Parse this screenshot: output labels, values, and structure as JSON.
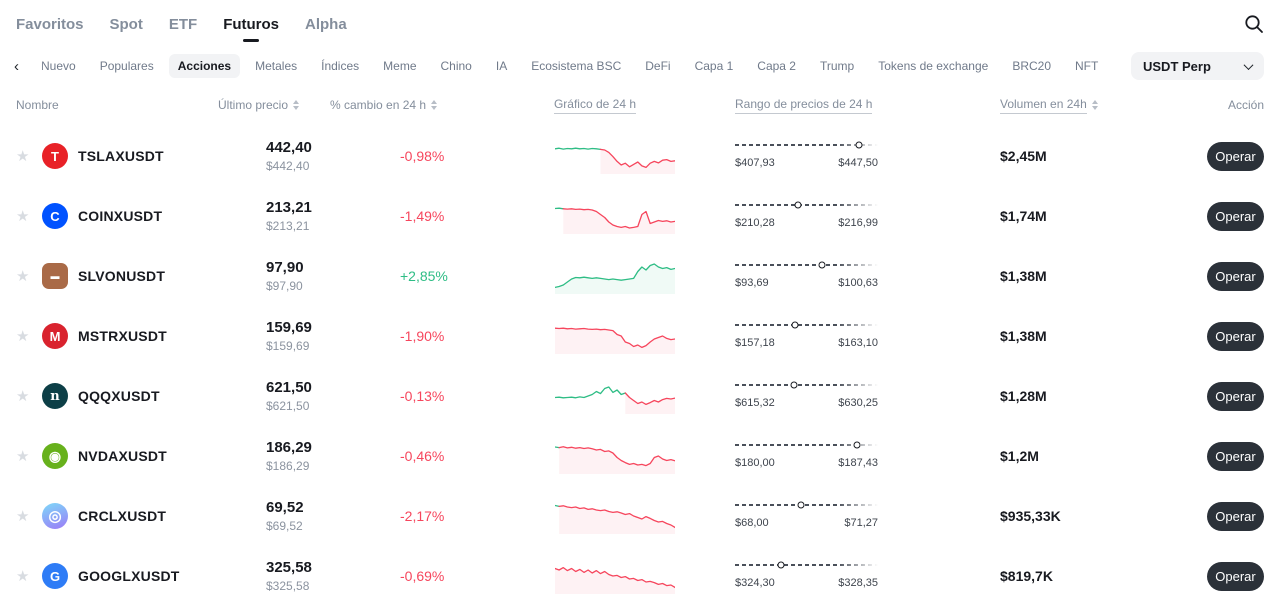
{
  "colors": {
    "up": "#2ebd85",
    "down": "#f6465d"
  },
  "nav": {
    "items": [
      {
        "label": "Favoritos",
        "active": false
      },
      {
        "label": "Spot",
        "active": false
      },
      {
        "label": "ETF",
        "active": false
      },
      {
        "label": "Futuros",
        "active": true
      },
      {
        "label": "Alpha",
        "active": false
      }
    ]
  },
  "categories": {
    "items": [
      "Nuevo",
      "Populares",
      "Acciones",
      "Metales",
      "Índices",
      "Meme",
      "Chino",
      "IA",
      "Ecosistema BSC",
      "DeFi",
      "Capa 1",
      "Capa 2",
      "Trump",
      "Tokens de exchange",
      "BRC20",
      "NFT"
    ],
    "active": "Acciones"
  },
  "quote_filter": {
    "value": "USDT Perp"
  },
  "table": {
    "headers": {
      "name": "Nombre",
      "last_price": "Último precio",
      "change": "% cambio en 24 h",
      "chart": "Gráfico de 24 h",
      "range": "Rango de precios de 24 h",
      "volume": "Volumen en 24h",
      "action": "Acción"
    },
    "star_glyph": "★",
    "trade_label": "Operar",
    "rows": [
      {
        "symbol": "TSLAXUSDT",
        "icon": {
          "glyph": "T",
          "bg": "#e82127",
          "shape": "circle"
        },
        "price": "442,40",
        "price_usd": "$442,40",
        "change": "-0,98%",
        "direction": "down",
        "spark": {
          "split": 12,
          "points": [
            0.26,
            0.24,
            0.27,
            0.25,
            0.26,
            0.24,
            0.26,
            0.25,
            0.27,
            0.25,
            0.26,
            0.28,
            0.3,
            0.38,
            0.52,
            0.68,
            0.8,
            0.74,
            0.86,
            0.78,
            0.7,
            0.83,
            0.88,
            0.74,
            0.68,
            0.73,
            0.64,
            0.62,
            0.68,
            0.66
          ]
        },
        "range": {
          "low": "$407,93",
          "high": "$447,50",
          "pct": 87
        },
        "volume": "$2,45M"
      },
      {
        "symbol": "COINXUSDT",
        "icon": {
          "glyph": "C",
          "bg": "#0052ff",
          "shape": "circle"
        },
        "price": "213,21",
        "price_usd": "$213,21",
        "change": "-1,49%",
        "direction": "down",
        "spark": {
          "split": 3,
          "points": [
            0.25,
            0.24,
            0.26,
            0.27,
            0.26,
            0.28,
            0.27,
            0.29,
            0.28,
            0.3,
            0.35,
            0.45,
            0.55,
            0.7,
            0.8,
            0.85,
            0.88,
            0.85,
            0.9,
            0.88,
            0.85,
            0.45,
            0.35,
            0.75,
            0.7,
            0.65,
            0.68,
            0.66,
            0.7,
            0.68
          ]
        },
        "range": {
          "low": "$210,28",
          "high": "$216,99",
          "pct": 44
        },
        "volume": "$1,74M"
      },
      {
        "symbol": "SLVONUSDT",
        "icon": {
          "glyph": "▬",
          "bg": "#a96a47",
          "shape": "square",
          "size": 9
        },
        "price": "97,90",
        "price_usd": "$97,90",
        "change": "+2,85%",
        "direction": "up",
        "spark": {
          "split": 30,
          "points": [
            0.88,
            0.85,
            0.8,
            0.7,
            0.6,
            0.55,
            0.56,
            0.54,
            0.56,
            0.58,
            0.56,
            0.58,
            0.6,
            0.62,
            0.6,
            0.62,
            0.64,
            0.62,
            0.6,
            0.58,
            0.35,
            0.2,
            0.3,
            0.15,
            0.1,
            0.2,
            0.25,
            0.22,
            0.28,
            0.25
          ]
        },
        "range": {
          "low": "$93,69",
          "high": "$100,63",
          "pct": 61
        },
        "volume": "$1,38M"
      },
      {
        "symbol": "MSTRXUSDT",
        "icon": {
          "glyph": "M",
          "bg": "#d9232e",
          "shape": "circle"
        },
        "price": "159,69",
        "price_usd": "$159,69",
        "change": "-1,90%",
        "direction": "down",
        "spark": {
          "split": 0,
          "points": [
            0.24,
            0.25,
            0.24,
            0.26,
            0.25,
            0.27,
            0.26,
            0.25,
            0.27,
            0.28,
            0.27,
            0.29,
            0.28,
            0.3,
            0.32,
            0.45,
            0.5,
            0.7,
            0.75,
            0.85,
            0.8,
            0.88,
            0.82,
            0.7,
            0.6,
            0.55,
            0.5,
            0.58,
            0.62,
            0.6
          ]
        },
        "range": {
          "low": "$157,18",
          "high": "$163,10",
          "pct": 42
        },
        "volume": "$1,38M"
      },
      {
        "symbol": "QQQXUSDT",
        "icon": {
          "glyph": "n",
          "bg": "#0d3f47",
          "shape": "circle",
          "serif": true
        },
        "price": "621,50",
        "price_usd": "$621,50",
        "change": "-0,13%",
        "direction": "down",
        "spark": {
          "split": 18,
          "points": [
            0.55,
            0.54,
            0.56,
            0.55,
            0.54,
            0.56,
            0.53,
            0.55,
            0.5,
            0.45,
            0.35,
            0.42,
            0.25,
            0.2,
            0.38,
            0.3,
            0.45,
            0.4,
            0.55,
            0.65,
            0.75,
            0.7,
            0.78,
            0.72,
            0.65,
            0.7,
            0.62,
            0.58,
            0.6,
            0.57
          ]
        },
        "range": {
          "low": "$615,32",
          "high": "$630,25",
          "pct": 41
        },
        "volume": "$1,28M"
      },
      {
        "symbol": "NVDAXUSDT",
        "icon": {
          "glyph": "◉",
          "bg": "#67b11c",
          "shape": "circle",
          "size": 14
        },
        "price": "186,29",
        "price_usd": "$186,29",
        "change": "-0,46%",
        "direction": "down",
        "spark": {
          "split": 2,
          "points": [
            0.2,
            0.22,
            0.19,
            0.23,
            0.21,
            0.24,
            0.22,
            0.25,
            0.23,
            0.26,
            0.3,
            0.28,
            0.35,
            0.33,
            0.4,
            0.55,
            0.65,
            0.72,
            0.78,
            0.75,
            0.8,
            0.78,
            0.82,
            0.75,
            0.55,
            0.5,
            0.6,
            0.65,
            0.62,
            0.66
          ]
        },
        "range": {
          "low": "$180,00",
          "high": "$187,43",
          "pct": 85
        },
        "volume": "$1,2M"
      },
      {
        "symbol": "CRCLXUSDT",
        "icon": {
          "glyph": "◎",
          "bg": "#7ed9f8",
          "bg2": "#9b7bf7",
          "shape": "circle",
          "size": 15
        },
        "price": "69,52",
        "price_usd": "$69,52",
        "change": "-2,17%",
        "direction": "down",
        "spark": {
          "split": 2,
          "points": [
            0.15,
            0.18,
            0.16,
            0.2,
            0.22,
            0.2,
            0.25,
            0.23,
            0.28,
            0.26,
            0.3,
            0.32,
            0.3,
            0.35,
            0.38,
            0.36,
            0.4,
            0.45,
            0.42,
            0.5,
            0.55,
            0.6,
            0.52,
            0.58,
            0.65,
            0.7,
            0.68,
            0.75,
            0.8,
            0.88
          ]
        },
        "range": {
          "low": "$68,00",
          "high": "$71,27",
          "pct": 46
        },
        "volume": "$935,33K"
      },
      {
        "symbol": "GOOGLXUSDT",
        "icon": {
          "glyph": "G",
          "bg": "#2e7cf6",
          "shape": "circle"
        },
        "price": "325,58",
        "price_usd": "$325,58",
        "change": "-0,69%",
        "direction": "down",
        "spark": {
          "split": 0,
          "points": [
            0.25,
            0.3,
            0.22,
            0.32,
            0.25,
            0.35,
            0.28,
            0.38,
            0.3,
            0.4,
            0.32,
            0.42,
            0.35,
            0.45,
            0.5,
            0.48,
            0.55,
            0.52,
            0.6,
            0.58,
            0.65,
            0.62,
            0.7,
            0.68,
            0.72,
            0.78,
            0.75,
            0.82,
            0.8,
            0.88
          ]
        },
        "range": {
          "low": "$324,30",
          "high": "$328,35",
          "pct": 32
        },
        "volume": "$819,7K"
      }
    ]
  }
}
